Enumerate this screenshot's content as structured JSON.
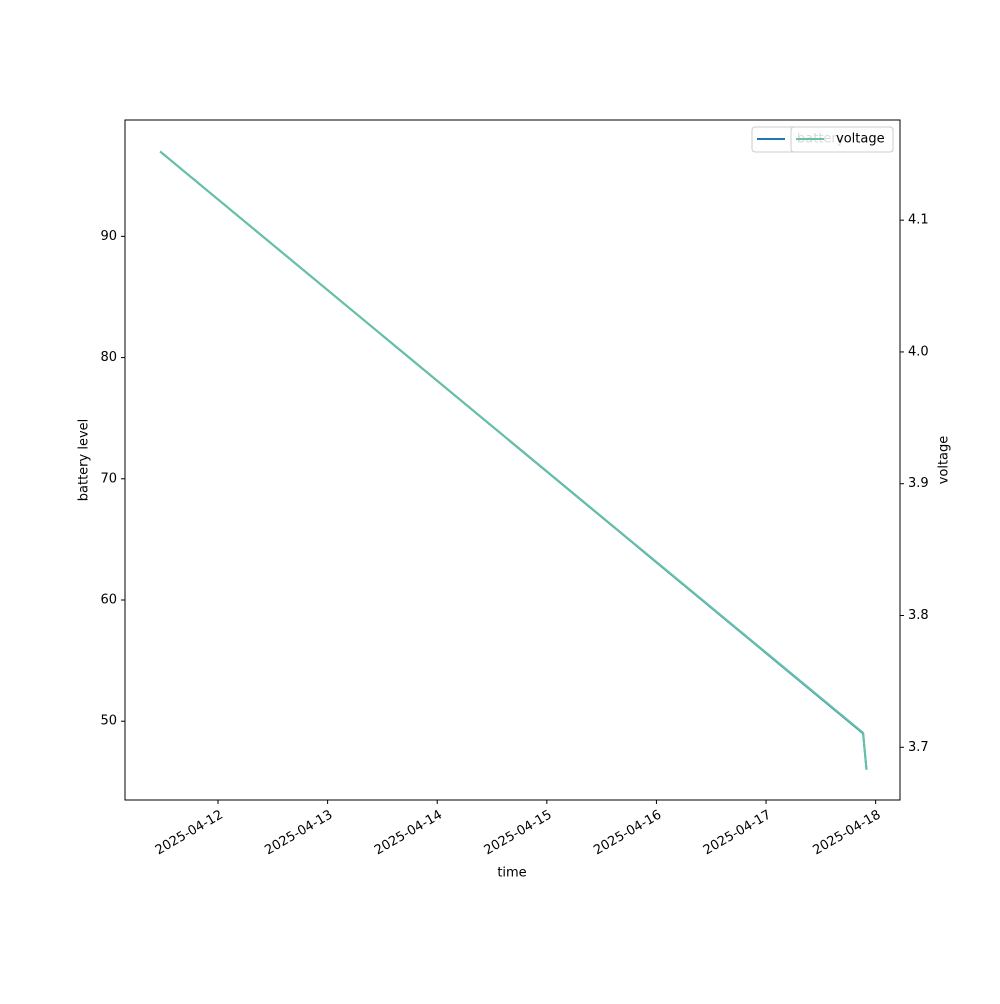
{
  "chart_data": {
    "type": "line",
    "x_label": "time",
    "y_label": "battery level",
    "y2_label": "voltage",
    "x": [
      "2025-04-11T11:20",
      "2025-04-17T21:15",
      "2025-04-17T22:00"
    ],
    "series": [
      {
        "name": "battery",
        "color": "#1f77b4",
        "values": [
          97,
          49,
          46
        ]
      },
      {
        "name": "voltage",
        "color": "#66c2a5",
        "axis": "y2",
        "values": [
          4.152,
          3.711,
          3.683
        ]
      }
    ],
    "xlim": [
      "2025-04-11T03:38",
      "2025-04-18T05:20"
    ],
    "xticks": [
      "2025-04-12",
      "2025-04-13",
      "2025-04-14",
      "2025-04-15",
      "2025-04-16",
      "2025-04-17",
      "2025-04-18"
    ],
    "ylim": [
      43.5,
      99.6
    ],
    "yticks": [
      50,
      60,
      70,
      80,
      90
    ],
    "y2lim": [
      3.66,
      4.176
    ],
    "y2ticks": [
      3.7,
      3.8,
      3.9,
      4.0,
      4.1
    ],
    "legend": "upper right"
  }
}
